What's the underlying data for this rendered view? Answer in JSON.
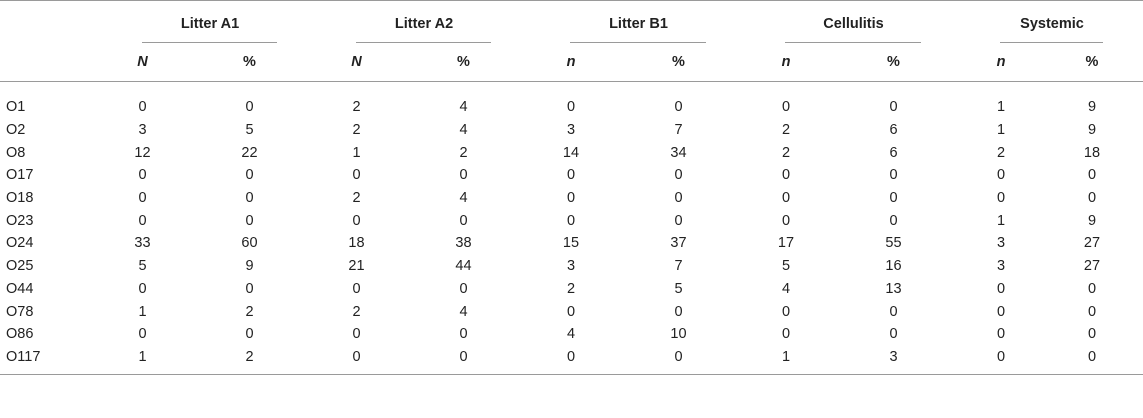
{
  "groups": [
    "Litter A1",
    "Litter A2",
    "Litter B1",
    "Cellulitis",
    "Systemic"
  ],
  "subheaders": [
    {
      "count": "N",
      "pct": "%"
    },
    {
      "count": "N",
      "pct": "%"
    },
    {
      "count": "n",
      "pct": "%"
    },
    {
      "count": "n",
      "pct": "%"
    },
    {
      "count": "n",
      "pct": "%"
    }
  ],
  "rows": [
    {
      "label": "O1",
      "values": [
        "0",
        "0",
        "2",
        "4",
        "0",
        "0",
        "0",
        "0",
        "1",
        "9"
      ]
    },
    {
      "label": "O2",
      "values": [
        "3",
        "5",
        "2",
        "4",
        "3",
        "7",
        "2",
        "6",
        "1",
        "9"
      ]
    },
    {
      "label": "O8",
      "values": [
        "12",
        "22",
        "1",
        "2",
        "14",
        "34",
        "2",
        "6",
        "2",
        "18"
      ]
    },
    {
      "label": "O17",
      "values": [
        "0",
        "0",
        "0",
        "0",
        "0",
        "0",
        "0",
        "0",
        "0",
        "0"
      ]
    },
    {
      "label": "O18",
      "values": [
        "0",
        "0",
        "2",
        "4",
        "0",
        "0",
        "0",
        "0",
        "0",
        "0"
      ]
    },
    {
      "label": "O23",
      "values": [
        "0",
        "0",
        "0",
        "0",
        "0",
        "0",
        "0",
        "0",
        "1",
        "9"
      ]
    },
    {
      "label": "O24",
      "values": [
        "33",
        "60",
        "18",
        "38",
        "15",
        "37",
        "17",
        "55",
        "3",
        "27"
      ]
    },
    {
      "label": "O25",
      "values": [
        "5",
        "9",
        "21",
        "44",
        "3",
        "7",
        "5",
        "16",
        "3",
        "27"
      ]
    },
    {
      "label": "O44",
      "values": [
        "0",
        "0",
        "0",
        "0",
        "2",
        "5",
        "4",
        "13",
        "0",
        "0"
      ]
    },
    {
      "label": "O78",
      "values": [
        "1",
        "2",
        "2",
        "4",
        "0",
        "0",
        "0",
        "0",
        "0",
        "0"
      ]
    },
    {
      "label": "O86",
      "values": [
        "0",
        "0",
        "0",
        "0",
        "4",
        "10",
        "0",
        "0",
        "0",
        "0"
      ]
    },
    {
      "label": "O117",
      "values": [
        "1",
        "2",
        "0",
        "0",
        "0",
        "0",
        "1",
        "3",
        "0",
        "0"
      ]
    }
  ]
}
